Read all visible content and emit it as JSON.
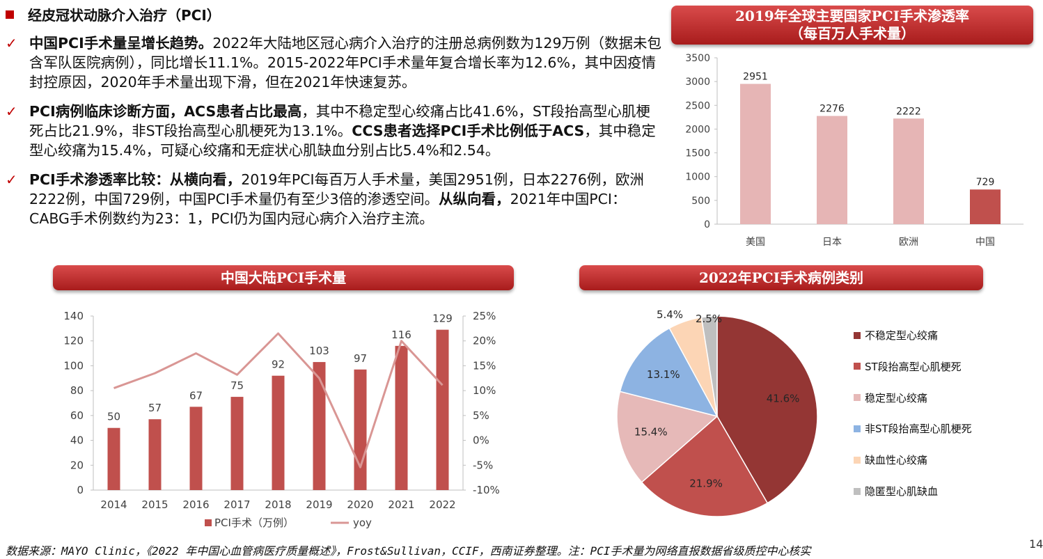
{
  "section": {
    "title": "经皮冠状动脉介入治疗（PCI）"
  },
  "bullets": [
    {
      "parts": [
        {
          "text": "中国PCI手术量呈增长趋势。",
          "bold": true
        },
        {
          "text": "2022年大陆地区冠心病介入治疗的注册总病例数为129万例（数据未包含军队医院病例），同比增长11.1%。2015-2022年PCI手术量年复合增长率为12.6%，其中因疫情封控原因，2020年手术量出现下滑，但在2021年快速复苏。",
          "bold": false
        }
      ]
    },
    {
      "parts": [
        {
          "text": "PCI病例临床诊断方面，ACS患者占比最高",
          "bold": true
        },
        {
          "text": "，其中不稳定型心绞痛占比41.6%，ST段抬高型心肌梗死占比21.9%，非ST段抬高型心肌梗死为13.1%。",
          "bold": false
        },
        {
          "text": "CCS患者选择PCI手术比例低于ACS",
          "bold": true
        },
        {
          "text": "，其中稳定型心绞痛为15.4%，可疑心绞痛和无症状心肌缺血分别占比5.4%和2.54。",
          "bold": false
        }
      ]
    },
    {
      "parts": [
        {
          "text": "PCI手术渗透率比较：从横向看，",
          "bold": true
        },
        {
          "text": "2019年PCI每百万人手术量，美国2951例，日本2276例，欧洲2222例，中国729例，中国PCI手术量仍有至少3倍的渗透空间。",
          "bold": false
        },
        {
          "text": "从纵向看，",
          "bold": true
        },
        {
          "text": "2021年中国PCI：CABG手术例数约为23：1，PCI仍为国内冠心病介入治疗主流。",
          "bold": false
        }
      ]
    }
  ],
  "banners": {
    "top_right": [
      "2019年全球主要国家PCI手术渗透率",
      "（每百万人手术量）"
    ],
    "bottom_left": "中国大陆PCI手术量",
    "bottom_right": "2022年PCI手术病例类别"
  },
  "chart_data": [
    {
      "id": "penetration",
      "type": "bar",
      "categories": [
        "美国",
        "日本",
        "欧洲",
        "中国"
      ],
      "values": [
        2951,
        2276,
        2222,
        729
      ],
      "colors": [
        "#e6b5b5",
        "#e6b5b5",
        "#e6b5b5",
        "#c0504d"
      ],
      "ylim": [
        0,
        3500
      ],
      "yticks": [
        "0",
        "500",
        "1000",
        "1500",
        "2000",
        "2500",
        "3000",
        "3500"
      ],
      "grid": false
    },
    {
      "id": "volume",
      "type": "bar+line",
      "categories": [
        "2014",
        "2015",
        "2016",
        "2017",
        "2018",
        "2019",
        "2020",
        "2021",
        "2022"
      ],
      "series": [
        {
          "name": "PCI手术（万例）",
          "type": "bar",
          "axis": "left",
          "color": "#c0504d",
          "values": [
            50,
            57,
            67,
            75,
            92,
            103,
            97,
            116,
            129
          ]
        },
        {
          "name": "yoy",
          "type": "line",
          "axis": "right",
          "color": "#d99694",
          "values": [
            10.5,
            13.5,
            17.5,
            13.2,
            21.5,
            12.5,
            -5.4,
            20.0,
            11.1
          ]
        }
      ],
      "ylim": [
        0,
        140
      ],
      "yticks": [
        "0",
        "20",
        "40",
        "60",
        "80",
        "100",
        "120",
        "140"
      ],
      "y2lim": [
        -10,
        25
      ],
      "y2ticks": [
        "-10%",
        "-5%",
        "0%",
        "5%",
        "10%",
        "15%",
        "20%",
        "25%"
      ]
    },
    {
      "id": "case_types",
      "type": "pie",
      "slices": [
        {
          "label": "不稳定型心绞痛",
          "value": 41.6,
          "display": "41.6%",
          "color": "#943634"
        },
        {
          "label": "ST段抬高型心肌梗死",
          "value": 21.9,
          "display": "21.9%",
          "color": "#c0504d"
        },
        {
          "label": "稳定型心绞痛",
          "value": 15.4,
          "display": "15.4%",
          "color": "#e6b9b8"
        },
        {
          "label": "非ST段抬高型心肌梗死",
          "value": 13.1,
          "display": "13.1%",
          "color": "#8db3e2"
        },
        {
          "label": "缺血性心绞痛",
          "value": 5.4,
          "display": "5.4%",
          "color": "#fcd5b5"
        },
        {
          "label": "隐匿型心肌缺血",
          "value": 2.5,
          "display": "2.5%",
          "color": "#bfbfbf"
        }
      ]
    }
  ],
  "footer": {
    "source": "数据来源：MAYO Clinic，《2022 年中国心血管病医疗质量概述》，Frost&Sullivan，CCIF，西南证券整理。注：PCI手术量为网络直报数据省级质控中心核实",
    "page": "14"
  }
}
